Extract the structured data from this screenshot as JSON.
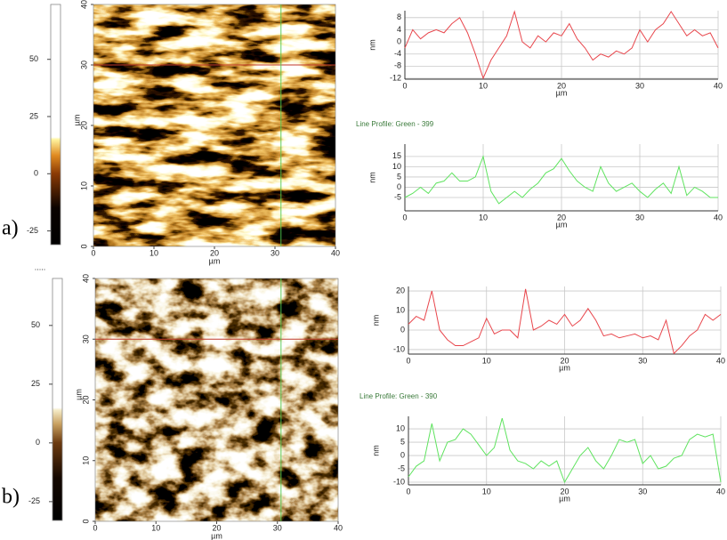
{
  "panel_labels": [
    "a)",
    "b)"
  ],
  "chart_data": [
    {
      "type": "heatmap",
      "xlim": [
        0,
        40
      ],
      "ylim": [
        0,
        40
      ],
      "xticks": [
        0,
        10,
        20,
        30,
        40
      ],
      "yticks": [
        0,
        10,
        20,
        30,
        40
      ],
      "xlabel": "µm",
      "ylabel": "µm",
      "colorbar_lim": [
        -31,
        74
      ],
      "colorbar_ticks": [
        -25,
        0,
        25,
        50
      ],
      "colormap": [
        [
          -31,
          "#000000"
        ],
        [
          -15,
          "#0a0300"
        ],
        [
          0,
          "#8a3a05"
        ],
        [
          8,
          "#e08a20"
        ],
        [
          15,
          "#fff5a0"
        ],
        [
          16,
          "#ffffff"
        ],
        [
          74,
          "#ffffff"
        ]
      ],
      "cursor_x": 31,
      "cursor_y": 30,
      "cursor_x_color": "#4ec94e",
      "cursor_y_color": "#c0392b"
    },
    {
      "type": "line",
      "xlim": [
        0,
        40
      ],
      "ylim": [
        -12.3,
        10.3
      ],
      "xticks": [
        0,
        10,
        20,
        30,
        40
      ],
      "yticks": [
        -12,
        -8,
        -4,
        0,
        4,
        8
      ],
      "xlabel": "µm",
      "ylabel": "nm",
      "grid": true,
      "x": [
        0,
        1,
        2,
        3,
        4,
        5,
        6,
        7,
        8,
        9,
        10,
        11,
        12,
        13,
        14,
        15,
        16,
        17,
        18,
        19,
        20,
        21,
        22,
        23,
        24,
        25,
        26,
        27,
        28,
        29,
        30,
        31,
        32,
        33,
        34,
        35,
        36,
        37,
        38,
        39,
        40
      ],
      "series": [
        {
          "color": "#e8464c",
          "values": [
            -2,
            4,
            1,
            3,
            4,
            3,
            6,
            8,
            3,
            -4,
            -12,
            -6,
            -2,
            2,
            10,
            0,
            -2,
            2,
            0,
            3,
            2,
            6,
            1,
            -2,
            -6,
            -4,
            -5,
            -3,
            -4,
            -2,
            4,
            0,
            4,
            6,
            10,
            6,
            2,
            4,
            2,
            3,
            -2
          ]
        }
      ]
    },
    {
      "type": "line",
      "title": "Line Profile: Green  -  399",
      "xlim": [
        0,
        40
      ],
      "ylim": [
        -11.5,
        21
      ],
      "xticks": [
        0,
        10,
        20,
        30,
        40
      ],
      "yticks": [
        -5,
        0,
        5,
        10,
        15
      ],
      "xlabel": "µm",
      "ylabel": "nm",
      "grid": true,
      "x": [
        0,
        1,
        2,
        3,
        4,
        5,
        6,
        7,
        8,
        9,
        10,
        11,
        12,
        13,
        14,
        15,
        16,
        17,
        18,
        19,
        20,
        21,
        22,
        23,
        24,
        25,
        26,
        27,
        28,
        29,
        30,
        31,
        32,
        33,
        34,
        35,
        36,
        37,
        38,
        39,
        40
      ],
      "series": [
        {
          "color": "#5fe35f",
          "values": [
            -5,
            -3,
            0,
            -3,
            2,
            3,
            7,
            3,
            3,
            5,
            15,
            -2,
            -8,
            -5,
            -2,
            -5,
            -1,
            2,
            7,
            9,
            14,
            8,
            3,
            0,
            -2,
            10,
            2,
            -2,
            0,
            2,
            -2,
            -5,
            -1,
            2,
            -3,
            10,
            -4,
            0,
            -2,
            -5,
            -5
          ]
        }
      ]
    },
    {
      "type": "heatmap",
      "xlim": [
        0,
        40
      ],
      "ylim": [
        0,
        40
      ],
      "xticks": [
        0,
        10,
        20,
        30,
        40
      ],
      "yticks": [
        0,
        10,
        20,
        30,
        40
      ],
      "xlabel": "µm",
      "ylabel": "µm",
      "colorbar_title": ".....",
      "colorbar_lim": [
        -33,
        70
      ],
      "colorbar_ticks": [
        -25,
        0,
        25,
        50
      ],
      "colormap": [
        [
          -33,
          "#000000"
        ],
        [
          -15,
          "#140800"
        ],
        [
          0,
          "#6b3a10"
        ],
        [
          8,
          "#c8a060"
        ],
        [
          14,
          "#f5ecc8"
        ],
        [
          15,
          "#ffffff"
        ],
        [
          70,
          "#ffffff"
        ]
      ],
      "cursor_x": 30.6,
      "cursor_y": 30,
      "cursor_x_color": "#4ec94e",
      "cursor_y_color": "#c0392b"
    },
    {
      "type": "line",
      "xlim": [
        0,
        40
      ],
      "ylim": [
        -12.3,
        22.3
      ],
      "xticks": [
        0,
        10,
        20,
        30,
        40
      ],
      "yticks": [
        -10,
        0,
        10,
        20
      ],
      "xlabel": "µm",
      "ylabel": "nm",
      "grid": true,
      "x": [
        0,
        1,
        2,
        3,
        4,
        5,
        6,
        7,
        8,
        9,
        10,
        11,
        12,
        13,
        14,
        15,
        16,
        17,
        18,
        19,
        20,
        21,
        22,
        23,
        24,
        25,
        26,
        27,
        28,
        29,
        30,
        31,
        32,
        33,
        34,
        35,
        36,
        37,
        38,
        39,
        40
      ],
      "series": [
        {
          "color": "#e8464c",
          "values": [
            3,
            7,
            5,
            20,
            0,
            -5,
            -8,
            -8,
            -6,
            -4,
            6,
            -2,
            0,
            0,
            -4,
            21,
            0,
            2,
            5,
            3,
            8,
            2,
            5,
            11,
            5,
            -3,
            -2,
            -4,
            -3,
            -2,
            -4,
            -3,
            -5,
            5,
            -12,
            -8,
            -3,
            0,
            8,
            5,
            8
          ]
        }
      ]
    },
    {
      "type": "line",
      "title": "Line Profile: Green  -  390",
      "xlim": [
        0,
        40
      ],
      "ylim": [
        -11,
        14.7
      ],
      "xticks": [
        0,
        10,
        20,
        30,
        40
      ],
      "yticks": [
        -10,
        -5,
        0,
        5,
        10
      ],
      "xlabel": "µm",
      "ylabel": "nm",
      "grid": true,
      "x": [
        0,
        1,
        2,
        3,
        4,
        5,
        6,
        7,
        8,
        9,
        10,
        11,
        12,
        13,
        14,
        15,
        16,
        17,
        18,
        19,
        20,
        21,
        22,
        23,
        24,
        25,
        26,
        27,
        28,
        29,
        30,
        31,
        32,
        33,
        34,
        35,
        36,
        37,
        38,
        39,
        40
      ],
      "series": [
        {
          "color": "#5fe35f",
          "values": [
            -8,
            -4,
            -2,
            12,
            -2,
            5,
            6,
            10,
            8,
            4,
            0,
            3,
            14,
            2,
            -2,
            -3,
            -5,
            -2,
            -4,
            -2,
            -10,
            -5,
            0,
            3,
            -2,
            -5,
            0,
            6,
            5,
            6,
            -3,
            0,
            -5,
            -4,
            -1,
            0,
            6,
            8,
            7,
            8,
            -10
          ]
        }
      ]
    }
  ]
}
